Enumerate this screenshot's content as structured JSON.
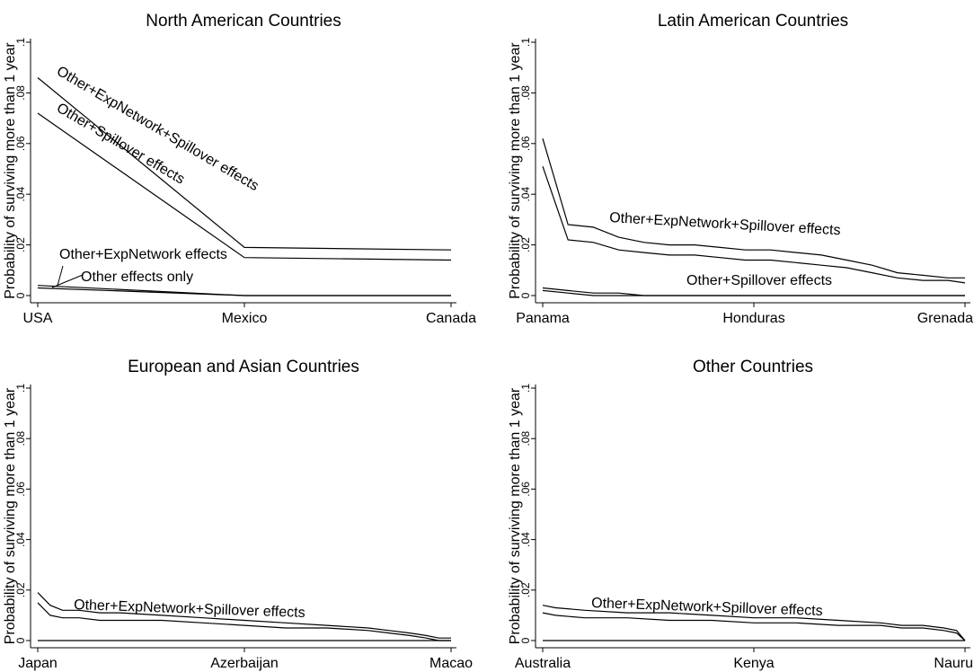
{
  "chart_data": [
    {
      "type": "line",
      "title": "North American Countries",
      "ylabel": "Probability of surviving more than 1 year",
      "xlabel": "",
      "ylim": [
        0,
        0.1
      ],
      "yticks": [
        0,
        0.02,
        0.04,
        0.06,
        0.08,
        0.1
      ],
      "ytick_labels": [
        "0",
        ".02",
        ".04",
        ".06",
        ".08",
        ".1"
      ],
      "x_tick_labels": [
        "USA",
        "Mexico",
        "Canada"
      ],
      "x": [
        0,
        1,
        2
      ],
      "series": [
        {
          "name": "Other+ExpNetwork+Spillover effects",
          "values": [
            0.086,
            0.019,
            0.018
          ]
        },
        {
          "name": "Other+Spillover effects",
          "values": [
            0.072,
            0.015,
            0.014
          ]
        },
        {
          "name": "Other+ExpNetwork effects",
          "values": [
            0.004,
            0.0,
            0.0
          ]
        },
        {
          "name": "Other effects only",
          "values": [
            0.003,
            0.0,
            0.0
          ]
        }
      ],
      "annotations": [
        "Other+ExpNetwork+Spillover effects",
        "Other+Spillover effects",
        "Other+ExpNetwork effects",
        "Other effects only"
      ]
    },
    {
      "type": "line",
      "title": "Latin American Countries",
      "ylabel": "Probability of surviving more than 1 year",
      "xlabel": "",
      "ylim": [
        0,
        0.1
      ],
      "yticks": [
        0,
        0.02,
        0.04,
        0.06,
        0.08,
        0.1
      ],
      "ytick_labels": [
        "0",
        ".02",
        ".04",
        ".06",
        ".08",
        ".1"
      ],
      "x_tick_labels": [
        "Panama",
        "Honduras",
        "Grenada"
      ],
      "x": [
        0,
        0.06,
        0.12,
        0.18,
        0.24,
        0.3,
        0.36,
        0.42,
        0.48,
        0.54,
        0.6,
        0.66,
        0.72,
        0.78,
        0.84,
        0.9,
        0.96,
        1.0
      ],
      "series": [
        {
          "name": "Other+ExpNetwork+Spillover effects",
          "values": [
            0.062,
            0.028,
            0.027,
            0.023,
            0.021,
            0.02,
            0.02,
            0.019,
            0.018,
            0.018,
            0.017,
            0.016,
            0.014,
            0.012,
            0.009,
            0.008,
            0.007,
            0.007
          ]
        },
        {
          "name": "Other+Spillover effects",
          "values": [
            0.051,
            0.022,
            0.021,
            0.018,
            0.017,
            0.016,
            0.016,
            0.015,
            0.014,
            0.014,
            0.013,
            0.012,
            0.011,
            0.009,
            0.007,
            0.006,
            0.006,
            0.005
          ]
        },
        {
          "name": "",
          "values": [
            0.003,
            0.002,
            0.001,
            0.001,
            0.0,
            0.0,
            0.0,
            0.0,
            0.0,
            0.0,
            0.0,
            0.0,
            0.0,
            0.0,
            0.0,
            0.0,
            0.0,
            0.0
          ]
        },
        {
          "name": "",
          "values": [
            0.002,
            0.001,
            0.0,
            0.0,
            0.0,
            0.0,
            0.0,
            0.0,
            0.0,
            0.0,
            0.0,
            0.0,
            0.0,
            0.0,
            0.0,
            0.0,
            0.0,
            0.0
          ]
        }
      ],
      "annotations": [
        "Other+ExpNetwork+Spillover effects",
        "Other+Spillover effects"
      ]
    },
    {
      "type": "line",
      "title": "European and Asian Countries",
      "ylabel": "Probability of surviving more than 1 year",
      "xlabel": "",
      "ylim": [
        0,
        0.1
      ],
      "yticks": [
        0,
        0.02,
        0.04,
        0.06,
        0.08,
        0.1
      ],
      "ytick_labels": [
        "0",
        ".02",
        ".04",
        ".06",
        ".08",
        ".1"
      ],
      "x_tick_labels": [
        "Japan",
        "Azerbaijan",
        "Macao"
      ],
      "x": [
        0,
        0.03,
        0.06,
        0.1,
        0.15,
        0.2,
        0.3,
        0.4,
        0.5,
        0.6,
        0.7,
        0.8,
        0.85,
        0.9,
        0.94,
        0.97,
        1.0
      ],
      "series": [
        {
          "name": "Other+ExpNetwork+Spillover effects",
          "values": [
            0.019,
            0.014,
            0.012,
            0.012,
            0.011,
            0.011,
            0.01,
            0.009,
            0.008,
            0.007,
            0.006,
            0.005,
            0.004,
            0.003,
            0.002,
            0.001,
            0.001
          ]
        },
        {
          "name": "",
          "values": [
            0.015,
            0.01,
            0.009,
            0.009,
            0.008,
            0.008,
            0.008,
            0.007,
            0.006,
            0.005,
            0.005,
            0.004,
            0.003,
            0.002,
            0.001,
            0.0,
            0.0
          ]
        },
        {
          "name": "",
          "values": [
            0.0,
            0.0,
            0.0,
            0.0,
            0.0,
            0.0,
            0.0,
            0.0,
            0.0,
            0.0,
            0.0,
            0.0,
            0.0,
            0.0,
            0.0,
            0.0,
            0.0
          ]
        }
      ],
      "annotations": [
        "Other+ExpNetwork+Spillover effects"
      ]
    },
    {
      "type": "line",
      "title": "Other Countries",
      "ylabel": "Probability of surviving more than 1 year",
      "xlabel": "",
      "ylim": [
        0,
        0.1
      ],
      "yticks": [
        0,
        0.02,
        0.04,
        0.06,
        0.08,
        0.1
      ],
      "ytick_labels": [
        "0",
        ".02",
        ".04",
        ".06",
        ".08",
        ".1"
      ],
      "x_tick_labels": [
        "Australia",
        "Kenya",
        "Nauru"
      ],
      "x": [
        0,
        0.03,
        0.1,
        0.2,
        0.3,
        0.4,
        0.5,
        0.6,
        0.7,
        0.8,
        0.85,
        0.9,
        0.95,
        0.98,
        1.0
      ],
      "series": [
        {
          "name": "Other+ExpNetwork+Spillover effects",
          "values": [
            0.014,
            0.013,
            0.012,
            0.011,
            0.011,
            0.01,
            0.009,
            0.009,
            0.008,
            0.007,
            0.006,
            0.006,
            0.005,
            0.004,
            0.0
          ]
        },
        {
          "name": "",
          "values": [
            0.011,
            0.01,
            0.009,
            0.009,
            0.008,
            0.008,
            0.007,
            0.007,
            0.006,
            0.006,
            0.005,
            0.005,
            0.004,
            0.003,
            0.0
          ]
        },
        {
          "name": "",
          "values": [
            0.0,
            0.0,
            0.0,
            0.0,
            0.0,
            0.0,
            0.0,
            0.0,
            0.0,
            0.0,
            0.0,
            0.0,
            0.0,
            0.0,
            0.0
          ]
        }
      ],
      "annotations": [
        "Other+ExpNetwork+Spillover effects"
      ]
    }
  ]
}
